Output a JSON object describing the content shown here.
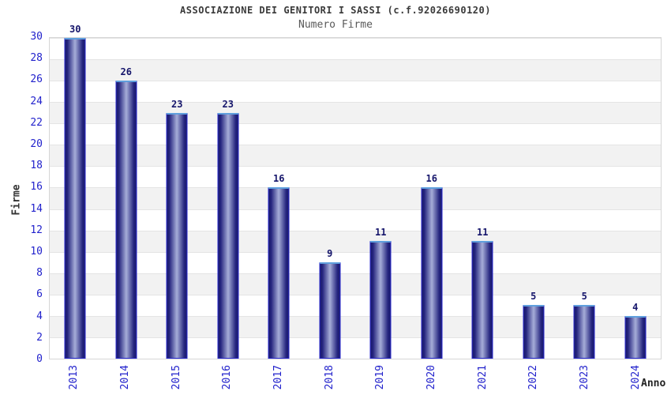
{
  "header": {
    "title": "ASSOCIAZIONE DEI GENITORI I SASSI (c.f.92026690120)",
    "subtitle": "Numero Firme"
  },
  "chart_data": {
    "type": "bar",
    "title": "ASSOCIAZIONE DEI GENITORI I SASSI (c.f.92026690120)",
    "subtitle": "Numero Firme",
    "xlabel": "Anno",
    "ylabel": "Firme",
    "categories": [
      "2013",
      "2014",
      "2015",
      "2016",
      "2017",
      "2018",
      "2019",
      "2020",
      "2021",
      "2022",
      "2023",
      "2024"
    ],
    "values": [
      30,
      26,
      23,
      23,
      16,
      9,
      11,
      16,
      11,
      5,
      5,
      4
    ],
    "ylim": [
      0,
      30
    ],
    "ytick_step": 2,
    "grid": "horizontal gridlines with alternating white/gray bands every 2 units",
    "legend": "none",
    "colors": {
      "bar_border": "#2828cf",
      "bar_top_highlight": "#5f9fdd",
      "bar_gradient_dark": "#1b1b6d",
      "bar_gradient_light": "#a6add8",
      "tick_label": "#2222cc",
      "value_label": "#15156b",
      "band_gray": "#f2f2f2",
      "band_white": "#ffffff",
      "gridline": "#e4e4e4",
      "title": "#3a3a3a",
      "subtitle": "#595959"
    }
  }
}
